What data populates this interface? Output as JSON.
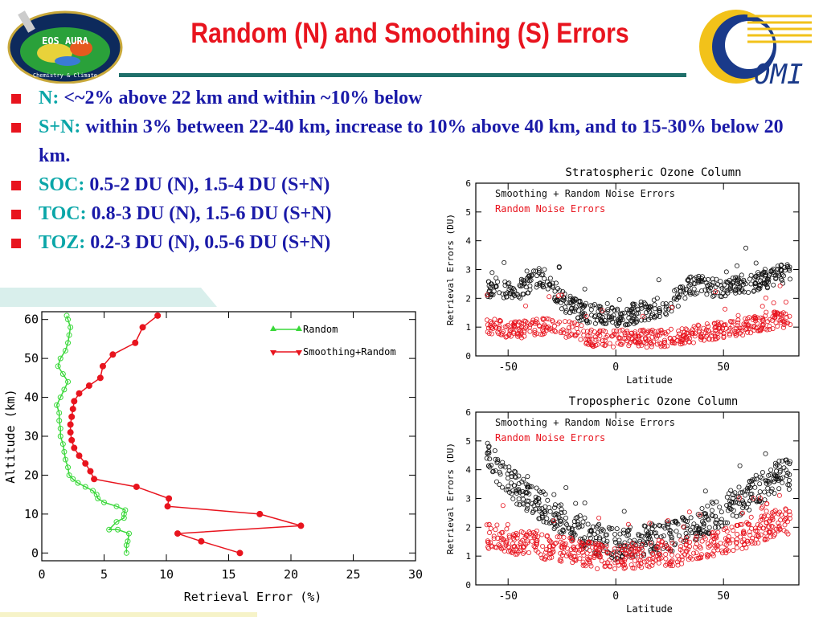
{
  "slide": {
    "title": "Random (N) and Smoothing (S) Errors",
    "bullets": [
      {
        "lead": "N:",
        "text": " <~2% above 22 km and within ~10% below"
      },
      {
        "lead": "S+N:",
        "text": " within 3% between 22-40 km, increase to 10% above 40 km, and to 15-30% below 20 km."
      },
      {
        "lead": "SOC:",
        "text": " 0.5-2 DU (N), 1.5-4 DU (S+N)"
      },
      {
        "lead": "TOC:",
        "text": " 0.8-3 DU (N), 1.5-6 DU (S+N)"
      },
      {
        "lead": "TOZ:",
        "text": " 0.2-3 DU (N), 0.5-6 DU (S+N)"
      }
    ],
    "logo_left": {
      "icon": "eos-aura-logo",
      "text": "EOS AURA",
      "subtext": "Chemistry & Climate"
    },
    "logo_right": {
      "icon": "omi-logo",
      "text": "OMI"
    },
    "colors": {
      "title": "#e8141e",
      "bullet_text": "#1a1aa8",
      "bullet_lead": "#0aa6a8",
      "rule": "#1f6f6a",
      "bullet_marker": "#e8141e"
    }
  },
  "chart_data": [
    {
      "type": "line",
      "title": "",
      "xlabel": "Retrieval Error (%)",
      "ylabel": "Altitude (km)",
      "xlim": [
        0,
        30
      ],
      "ylim": [
        -2,
        62
      ],
      "xticks": [
        "0",
        "5",
        "10",
        "15",
        "20",
        "25",
        "30"
      ],
      "yticks": [
        "0",
        "10",
        "20",
        "30",
        "40",
        "50",
        "60"
      ],
      "legend_position": "top-right",
      "series": [
        {
          "name": "Random",
          "color": "#3ad83a",
          "marker": "open-circle",
          "points": [
            [
              6.8,
              0
            ],
            [
              6.8,
              2
            ],
            [
              6.9,
              3
            ],
            [
              7.0,
              5
            ],
            [
              6.1,
              6
            ],
            [
              5.4,
              6
            ],
            [
              6.0,
              8
            ],
            [
              6.6,
              9
            ],
            [
              6.6,
              10
            ],
            [
              6.7,
              11
            ],
            [
              6.0,
              12
            ],
            [
              5.0,
              13
            ],
            [
              4.5,
              14
            ],
            [
              4.4,
              15
            ],
            [
              4.1,
              16
            ],
            [
              3.5,
              17
            ],
            [
              2.9,
              18
            ],
            [
              2.5,
              19
            ],
            [
              2.2,
              20
            ],
            [
              2.1,
              22
            ],
            [
              1.9,
              24
            ],
            [
              1.8,
              26
            ],
            [
              1.7,
              28
            ],
            [
              1.5,
              30
            ],
            [
              1.5,
              32
            ],
            [
              1.4,
              34
            ],
            [
              1.4,
              36
            ],
            [
              1.2,
              38
            ],
            [
              1.5,
              40
            ],
            [
              1.8,
              42
            ],
            [
              2.1,
              44
            ],
            [
              1.7,
              46
            ],
            [
              1.3,
              48
            ],
            [
              1.5,
              50
            ],
            [
              1.9,
              52
            ],
            [
              2.1,
              54
            ],
            [
              2.2,
              56
            ],
            [
              2.3,
              58
            ],
            [
              2.1,
              60
            ],
            [
              2.0,
              61
            ]
          ]
        },
        {
          "name": "Smoothing+Random",
          "color": "#e8141e",
          "marker": "filled-circle",
          "points": [
            [
              15.9,
              0
            ],
            [
              12.8,
              3
            ],
            [
              10.9,
              5
            ],
            [
              20.8,
              7
            ],
            [
              17.5,
              10
            ],
            [
              10.1,
              12
            ],
            [
              10.2,
              14
            ],
            [
              7.6,
              17
            ],
            [
              4.2,
              19
            ],
            [
              3.9,
              21
            ],
            [
              3.5,
              23
            ],
            [
              3.0,
              25
            ],
            [
              2.6,
              27
            ],
            [
              2.4,
              29
            ],
            [
              2.3,
              31
            ],
            [
              2.3,
              33
            ],
            [
              2.4,
              35
            ],
            [
              2.5,
              37
            ],
            [
              2.6,
              39
            ],
            [
              3.0,
              41
            ],
            [
              3.8,
              43
            ],
            [
              4.7,
              45
            ],
            [
              4.9,
              48
            ],
            [
              5.7,
              51
            ],
            [
              7.5,
              54
            ],
            [
              8.1,
              58
            ],
            [
              9.3,
              61
            ]
          ]
        }
      ]
    },
    {
      "type": "scatter",
      "title": "Stratospheric Ozone Column",
      "xlabel": "Latitude",
      "ylabel": "Retrieval Errors (DU)",
      "xlim": [
        -65,
        85
      ],
      "ylim": [
        0,
        6
      ],
      "xticks": [
        "-50",
        "0",
        "50"
      ],
      "yticks": [
        "0",
        "1",
        "2",
        "3",
        "4",
        "5",
        "6"
      ],
      "legend_position": "top-left",
      "series": [
        {
          "name": "Smoothing + Random Noise Errors",
          "color": "#111111",
          "profile": [
            [
              -58,
              2.4
            ],
            [
              -45,
              2.3
            ],
            [
              -35,
              2.8
            ],
            [
              -30,
              2.5
            ],
            [
              -25,
              1.9
            ],
            [
              -15,
              1.5
            ],
            [
              -5,
              1.4
            ],
            [
              5,
              1.4
            ],
            [
              15,
              1.6
            ],
            [
              25,
              1.8
            ],
            [
              35,
              2.5
            ],
            [
              45,
              2.4
            ],
            [
              55,
              2.4
            ],
            [
              65,
              2.6
            ],
            [
              75,
              2.8
            ],
            [
              80,
              2.9
            ]
          ]
        },
        {
          "name": "Random Noise Errors",
          "color": "#e8141e",
          "profile": [
            [
              -58,
              1.0
            ],
            [
              -45,
              0.9
            ],
            [
              -35,
              1.0
            ],
            [
              -30,
              1.0
            ],
            [
              -20,
              0.9
            ],
            [
              -10,
              0.6
            ],
            [
              0,
              0.6
            ],
            [
              10,
              0.6
            ],
            [
              20,
              0.6
            ],
            [
              30,
              0.7
            ],
            [
              40,
              0.8
            ],
            [
              50,
              0.9
            ],
            [
              60,
              1.0
            ],
            [
              70,
              1.2
            ],
            [
              80,
              1.3
            ]
          ]
        }
      ]
    },
    {
      "type": "scatter",
      "title": "Tropospheric Ozone Column",
      "xlabel": "Latitude",
      "ylabel": "Retrieval Errors (DU)",
      "xlim": [
        -65,
        85
      ],
      "ylim": [
        0,
        6
      ],
      "xticks": [
        "-50",
        "0",
        "50"
      ],
      "yticks": [
        "0",
        "1",
        "2",
        "3",
        "4",
        "5",
        "6"
      ],
      "legend_position": "top-left",
      "series": [
        {
          "name": "Smoothing + Random Noise Errors",
          "color": "#111111",
          "profile": [
            [
              -58,
              4.4
            ],
            [
              -50,
              3.6
            ],
            [
              -40,
              3.0
            ],
            [
              -30,
              2.5
            ],
            [
              -20,
              2.1
            ],
            [
              -10,
              1.6
            ],
            [
              0,
              1.4
            ],
            [
              10,
              1.5
            ],
            [
              20,
              1.6
            ],
            [
              30,
              1.8
            ],
            [
              40,
              2.2
            ],
            [
              50,
              2.6
            ],
            [
              60,
              3.0
            ],
            [
              70,
              3.5
            ],
            [
              78,
              4.0
            ],
            [
              80,
              3.8
            ]
          ]
        },
        {
          "name": "Random Noise Errors",
          "color": "#e8141e",
          "profile": [
            [
              -58,
              1.7
            ],
            [
              -50,
              1.5
            ],
            [
              -40,
              1.4
            ],
            [
              -30,
              1.3
            ],
            [
              -20,
              1.2
            ],
            [
              -10,
              1.0
            ],
            [
              0,
              1.0
            ],
            [
              10,
              1.0
            ],
            [
              20,
              1.1
            ],
            [
              30,
              1.1
            ],
            [
              40,
              1.3
            ],
            [
              50,
              1.5
            ],
            [
              60,
              1.7
            ],
            [
              70,
              2.0
            ],
            [
              78,
              2.3
            ],
            [
              80,
              2.2
            ]
          ]
        }
      ]
    }
  ]
}
